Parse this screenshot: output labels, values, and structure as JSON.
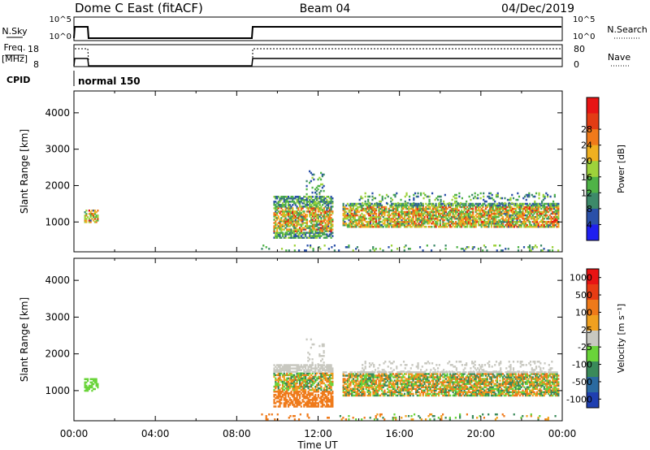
{
  "header": {
    "station": "Dome C East (fitACF)",
    "beam": "Beam 04",
    "date": "04/Dec/2019"
  },
  "summary": {
    "nsky_label": "N.Sky",
    "nsearch_label": "N.Search",
    "nsky_ticks": [
      "10^5",
      "10^0"
    ],
    "nsearch_ticks": [
      "10^5",
      "10^0"
    ],
    "freq_label_1": "Freq.",
    "freq_label_2": "[MHz]",
    "freq_ticks": [
      "18",
      "8"
    ],
    "nave_label": "Nave",
    "nave_ticks": [
      "80",
      "0"
    ],
    "cpid_label": "CPID",
    "cpid_value": "normal 150"
  },
  "chart_data": [
    {
      "type": "heatmap",
      "name": "power",
      "ylabel": "Slant Range [km]",
      "yticks": [
        "1000",
        "2000",
        "3000",
        "4000"
      ],
      "ylim": [
        180,
        4600
      ],
      "xlim": [
        0,
        24
      ],
      "colorbar_label": "Power [dB]",
      "colorbar_ticks": [
        "4",
        "8",
        "12",
        "16",
        "20",
        "24",
        "28"
      ],
      "colorbar_colors": [
        "#1f1ff0",
        "#2a50a8",
        "#3d8a6a",
        "#4fb347",
        "#9ed23b",
        "#f0b020",
        "#f07a1a",
        "#e33c14",
        "#e81414"
      ]
    },
    {
      "type": "heatmap",
      "name": "velocity",
      "ylabel": "Slant Range [km]",
      "yticks": [
        "1000",
        "2000",
        "3000",
        "4000"
      ],
      "ylim": [
        180,
        4600
      ],
      "xlim": [
        0,
        24
      ],
      "xticks": [
        "00:00",
        "04:00",
        "08:00",
        "12:00",
        "16:00",
        "20:00",
        "00:00"
      ],
      "xlabel": "Time UT",
      "colorbar_label": "Velocity [m s⁻¹]",
      "colorbar_ticks": [
        "1000",
        "500",
        "100",
        "25",
        "-25",
        "-100",
        "-500",
        "-1000"
      ],
      "colorbar_colors": [
        "#1f3fb0",
        "#2a6aa0",
        "#3a8a5a",
        "#6ad43a",
        "#c8c8c0",
        "#f0a020",
        "#ef7a1a",
        "#e83c14",
        "#e81414"
      ]
    }
  ]
}
